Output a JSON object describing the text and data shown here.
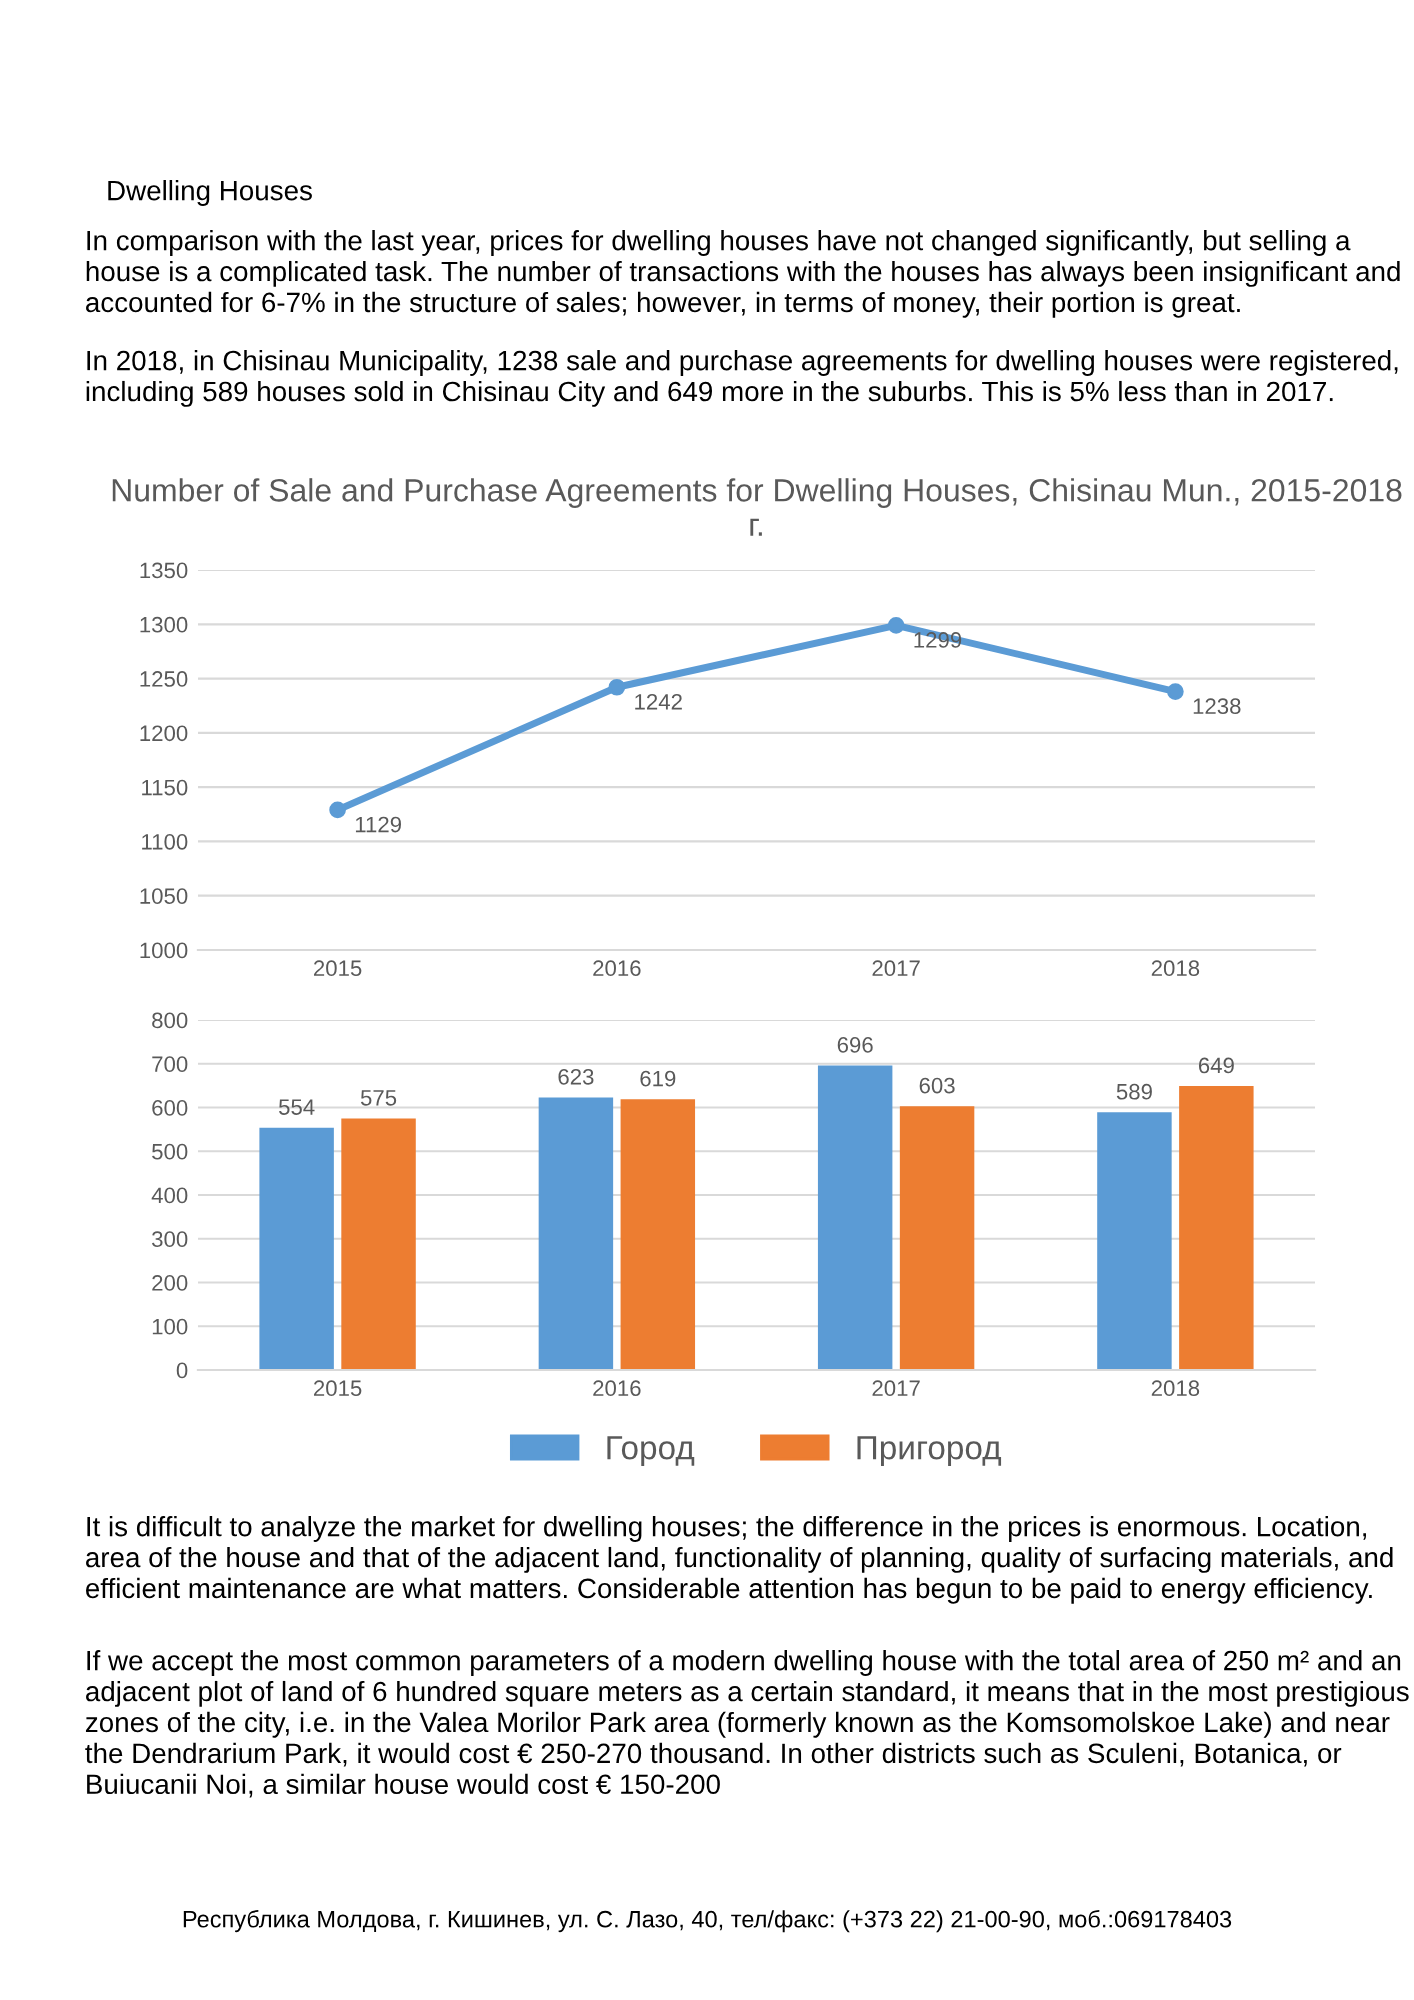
{
  "chart_data": [
    {
      "type": "line",
      "title": "Number of Sale and Purchase Agreements for Dwelling Houses, Chisinau Mun., 2015-2018 г.",
      "categories": [
        "2015",
        "2016",
        "2017",
        "2018"
      ],
      "series": [
        {
          "color": "#5b9bd5",
          "values": [
            1129,
            1242,
            1299,
            1238
          ]
        }
      ],
      "ylim": [
        1000,
        1350
      ],
      "yticks": [
        1000,
        1050,
        1100,
        1150,
        1200,
        1250,
        1300,
        1350
      ],
      "grid": "y",
      "marker": "circle",
      "data_labels": true,
      "annotations": [
        "Dwelling Houses",
        "In comparison with the last year, prices for dwelling houses have not changed significantly, but selling a house is a complicated task. The number of transactions with the houses has always been insignificant and accounted for 6-7% in the structure of sales; however, in terms of money, their portion is great.",
        "In 2018, in Chisinau Municipality, 1238 sale and purchase agreements for dwelling houses were registered, including 589 houses sold in Chisinau City and 649 more in the suburbs. This is 5% less than in 2017."
      ]
    },
    {
      "type": "bar",
      "categories": [
        "2015",
        "2016",
        "2017",
        "2018"
      ],
      "series": [
        {
          "name": "Город",
          "color": "#5b9bd5",
          "values": [
            554,
            623,
            696,
            589
          ]
        },
        {
          "name": "Пригород",
          "color": "#ed7d31",
          "values": [
            575,
            619,
            603,
            649
          ]
        }
      ],
      "ylim": [
        0,
        800
      ],
      "yticks": [
        0,
        100,
        200,
        300,
        400,
        500,
        600,
        700,
        800
      ],
      "grid": "y",
      "legend": "bottom",
      "data_labels": true,
      "annotations": [
        "It is difficult to analyze the market for dwelling houses; the difference in the prices is enormous. Location, area of the house and that of the adjacent land, functionality of planning, quality of surfacing materials, and efficient maintenance are what matters. Considerable attention has begun to be paid to energy efficiency.",
        "If we accept the most common parameters of a modern dwelling house with the total area of 250 m² and an adjacent plot of land of 6 hundred square meters as a certain standard, it means that in the most prestigious zones of the city, i.e. in the Valea Morilor Park area (formerly known as the Komsomolskoe Lake) and near the Dendrarium Park, it would cost € 250-270 thousand. In other districts such as Sculeni, Botanica, or Buiucanii Noi, a similar house would cost € 150-200",
        "Республика Молдова, г. Кишинев, ул. С. Лазо, 40, тел/факс: (+373 22) 21-00-90, моб.:069178403"
      ]
    }
  ]
}
